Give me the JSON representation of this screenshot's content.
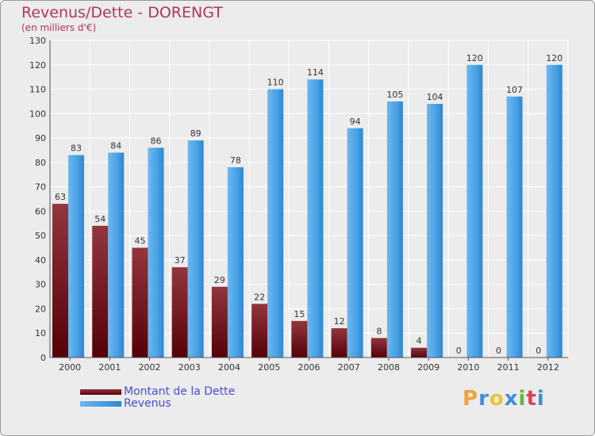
{
  "header": {
    "title": "Revenus/Dette - DORENGT",
    "subtitle": "(en milliers d'€)"
  },
  "legend": {
    "items": [
      {
        "label": "Montant de la Dette",
        "color": "#6b0f15"
      },
      {
        "label": "Revenus",
        "color": "#4aa3e6"
      }
    ]
  },
  "brand": {
    "letters": [
      "P",
      "r",
      "o",
      "x",
      "i",
      "t",
      "i"
    ],
    "colors": [
      "#f2a23a",
      "#3a8fd6",
      "#e8c43a",
      "#3a8fd6",
      "#64b840",
      "#e0405a",
      "#3a8fd6"
    ]
  },
  "chart_data": {
    "type": "bar",
    "categories": [
      "2000",
      "2001",
      "2002",
      "2003",
      "2004",
      "2005",
      "2006",
      "2007",
      "2008",
      "2009",
      "2010",
      "2011",
      "2012"
    ],
    "series": [
      {
        "name": "Montant de la Dette",
        "values": [
          63,
          54,
          45,
          37,
          29,
          22,
          15,
          12,
          8,
          4,
          0,
          0,
          0
        ]
      },
      {
        "name": "Revenus",
        "values": [
          83,
          84,
          86,
          89,
          78,
          110,
          114,
          94,
          105,
          104,
          120,
          107,
          120
        ]
      }
    ],
    "ylim": [
      0,
      130
    ],
    "yticks": [
      0,
      10,
      20,
      30,
      40,
      50,
      60,
      70,
      80,
      90,
      100,
      110,
      120,
      130
    ],
    "grid": true
  }
}
